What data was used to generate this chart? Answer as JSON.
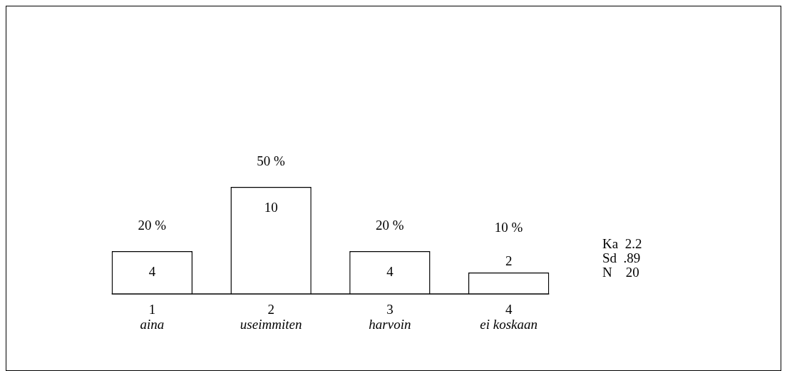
{
  "chart_data": {
    "type": "bar",
    "categories": [
      "1\naina",
      "2\nuseimmiten",
      "3\nharvoin",
      "4\nei koskaan"
    ],
    "values": [
      4,
      10,
      4,
      2
    ],
    "color": "#ffffff",
    "data_labels": true,
    "annotations": [
      {
        "text": "20 %",
        "x": "1\naina",
        "y": 4
      },
      {
        "text": "50 %",
        "x": "2\nuseimmiten",
        "y": 10
      },
      {
        "text": "20 %",
        "x": "3\nharvoin",
        "y": 4
      },
      {
        "text": "10 %",
        "x": "4\nei koskaan",
        "y": 2
      },
      "Ka  2.2",
      "Sd  .89",
      "N    20"
    ]
  }
}
